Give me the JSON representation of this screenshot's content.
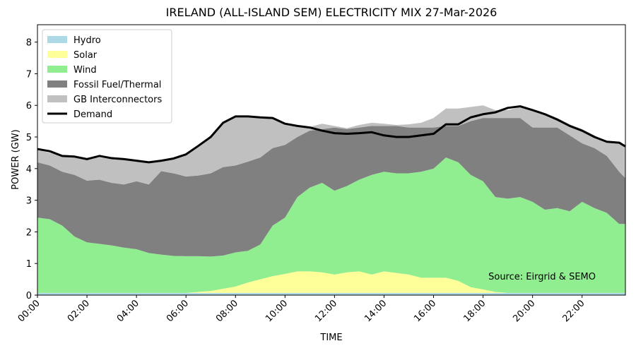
{
  "chart_data": {
    "type": "stacked_area",
    "title": "IRELAND (ALL-ISLAND SEM) ELECTRICITY MIX 27-Mar-2026",
    "x_label": "TIME",
    "y_label": "POWER (GW)",
    "annotation": "Source: Eirgrid & SEMO",
    "x": [
      "00:00",
      "00:30",
      "01:00",
      "01:30",
      "02:00",
      "02:30",
      "03:00",
      "03:30",
      "04:00",
      "04:30",
      "05:00",
      "05:30",
      "06:00",
      "06:30",
      "07:00",
      "07:30",
      "08:00",
      "08:30",
      "09:00",
      "09:30",
      "10:00",
      "10:30",
      "11:00",
      "11:30",
      "12:00",
      "12:30",
      "13:00",
      "13:30",
      "14:00",
      "14:30",
      "15:00",
      "15:30",
      "16:00",
      "16:30",
      "17:00",
      "17:30",
      "18:00",
      "18:30",
      "19:00",
      "19:30",
      "20:00",
      "20:30",
      "21:00",
      "21:30",
      "22:00",
      "22:30",
      "23:00",
      "23:30",
      "23:45"
    ],
    "xlim": [
      "00:00",
      "23:45"
    ],
    "xticks": [
      "00:00",
      "02:00",
      "04:00",
      "06:00",
      "08:00",
      "10:00",
      "12:00",
      "14:00",
      "16:00",
      "18:00",
      "20:00",
      "22:00"
    ],
    "ylim": [
      0,
      8.55
    ],
    "yticks": [
      0,
      1,
      2,
      3,
      4,
      5,
      6,
      7,
      8
    ],
    "legend": "upper left",
    "series": [
      {
        "name": "Hydro",
        "color": "#add8e6",
        "values": [
          0.07,
          0.07,
          0.07,
          0.07,
          0.07,
          0.07,
          0.07,
          0.07,
          0.07,
          0.07,
          0.07,
          0.07,
          0.07,
          0.07,
          0.07,
          0.07,
          0.07,
          0.07,
          0.07,
          0.07,
          0.07,
          0.07,
          0.07,
          0.07,
          0.07,
          0.07,
          0.07,
          0.07,
          0.07,
          0.07,
          0.07,
          0.07,
          0.07,
          0.07,
          0.07,
          0.07,
          0.07,
          0.07,
          0.07,
          0.07,
          0.07,
          0.07,
          0.07,
          0.07,
          0.07,
          0.07,
          0.07,
          0.07,
          0.07
        ]
      },
      {
        "name": "Solar",
        "color": "#ffff99",
        "values": [
          0,
          0,
          0,
          0,
          0,
          0,
          0,
          0,
          0,
          0,
          0,
          0,
          0,
          0.03,
          0.06,
          0.13,
          0.2,
          0.33,
          0.43,
          0.53,
          0.6,
          0.68,
          0.68,
          0.65,
          0.58,
          0.65,
          0.68,
          0.58,
          0.68,
          0.63,
          0.58,
          0.48,
          0.48,
          0.48,
          0.38,
          0.18,
          0.11,
          0.03,
          0,
          0,
          0,
          0,
          0,
          0,
          0,
          0,
          0,
          0,
          0
        ]
      },
      {
        "name": "Wind",
        "color": "#90ee90",
        "values": [
          2.38,
          2.33,
          2.13,
          1.78,
          1.6,
          1.55,
          1.5,
          1.43,
          1.38,
          1.26,
          1.21,
          1.17,
          1.16,
          1.13,
          1.09,
          1.05,
          1.08,
          1.0,
          1.1,
          1.6,
          1.78,
          2.35,
          2.65,
          2.83,
          2.65,
          2.73,
          2.9,
          3.15,
          3.15,
          3.15,
          3.2,
          3.35,
          3.45,
          3.8,
          3.75,
          3.55,
          3.42,
          3.0,
          2.98,
          3.03,
          2.88,
          2.63,
          2.68,
          2.58,
          2.88,
          2.68,
          2.53,
          2.18,
          2.18
        ]
      },
      {
        "name": "Fossil Fuel/Thermal",
        "color": "#808080",
        "values": [
          1.75,
          1.7,
          1.7,
          1.95,
          1.95,
          2.03,
          1.98,
          2.0,
          2.15,
          2.17,
          2.64,
          2.61,
          2.52,
          2.55,
          2.63,
          2.8,
          2.75,
          2.82,
          2.75,
          2.45,
          2.3,
          1.9,
          1.8,
          1.7,
          2.0,
          1.8,
          1.65,
          1.55,
          1.45,
          1.5,
          1.45,
          1.4,
          1.3,
          1.0,
          1.15,
          1.7,
          2.0,
          2.5,
          2.55,
          2.5,
          2.35,
          2.6,
          2.55,
          2.4,
          1.85,
          1.9,
          1.8,
          1.65,
          1.45
        ]
      },
      {
        "name": "GB Interconnectors",
        "color": "#c0c0c0",
        "values": [
          0.4,
          0.4,
          0.5,
          0.55,
          0.68,
          0.7,
          0.75,
          0.78,
          0.62,
          0.7,
          0.33,
          0.47,
          0.7,
          0.92,
          1.15,
          1.4,
          1.55,
          1.46,
          1.27,
          0.97,
          0.7,
          0.35,
          0.12,
          0.17,
          0.05,
          0.03,
          0.08,
          0.1,
          0.07,
          0.03,
          0.1,
          0.15,
          0.3,
          0.55,
          0.55,
          0.45,
          0.4,
          0.25,
          0.25,
          0.35,
          0.58,
          0.45,
          0.3,
          0.35,
          0.45,
          0.4,
          0.45,
          0.9,
          0.95
        ]
      }
    ],
    "demand": {
      "name": "Demand",
      "color": "#000000",
      "values": [
        4.62,
        4.55,
        4.4,
        4.38,
        4.3,
        4.4,
        4.33,
        4.3,
        4.25,
        4.2,
        4.25,
        4.32,
        4.45,
        4.72,
        5.0,
        5.45,
        5.65,
        5.65,
        5.62,
        5.6,
        5.42,
        5.35,
        5.3,
        5.2,
        5.12,
        5.1,
        5.12,
        5.15,
        5.05,
        5.0,
        5.0,
        5.05,
        5.1,
        5.4,
        5.4,
        5.62,
        5.72,
        5.78,
        5.92,
        5.97,
        5.85,
        5.72,
        5.55,
        5.35,
        5.2,
        5.0,
        4.85,
        4.82,
        4.7
      ]
    }
  }
}
